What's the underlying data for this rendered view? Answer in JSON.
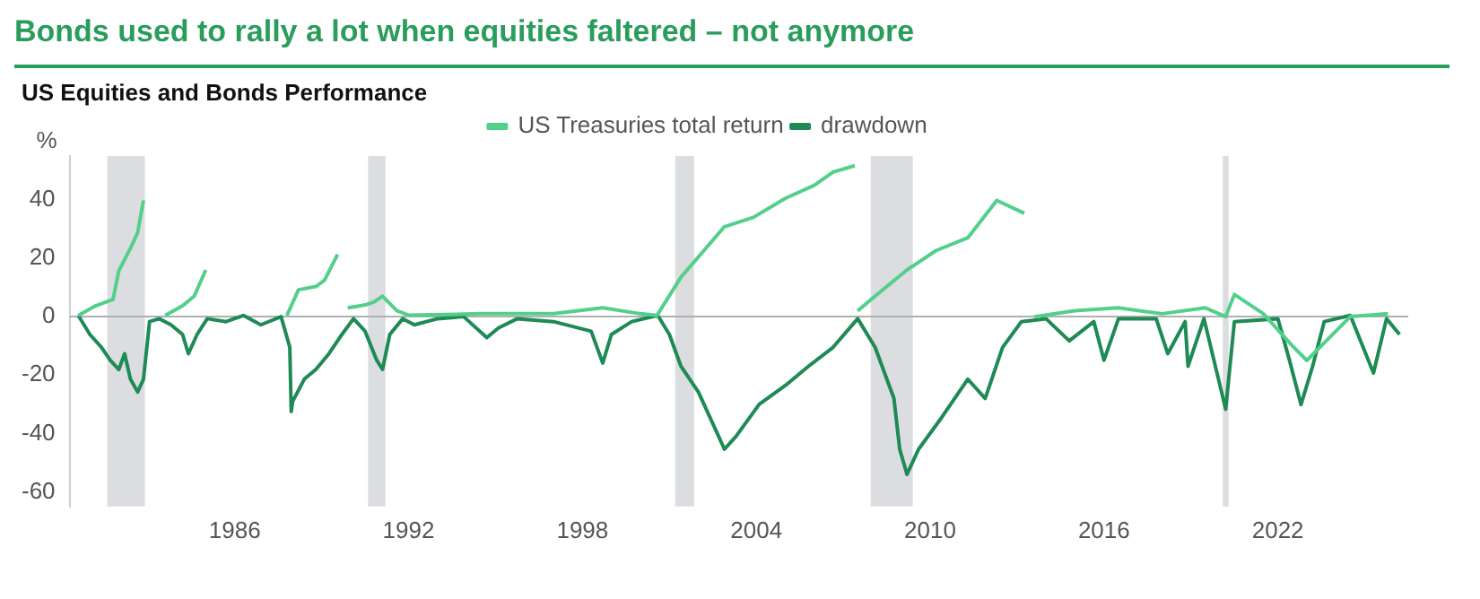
{
  "chart_data": {
    "type": "line",
    "title": "Bonds used to rally a lot when equities faltered – not anymore",
    "subtitle": "US Equities and Bonds Performance",
    "ylabel": "%",
    "xlim": [
      1980.3,
      2026.5
    ],
    "xticks": [
      1986,
      1992,
      1998,
      2004,
      2010,
      2016,
      2022
    ],
    "ylim": [
      -65,
      55
    ],
    "yticks": [
      -60,
      -40,
      -20,
      0,
      20,
      40
    ],
    "grid": false,
    "legend": "top",
    "marker": "none",
    "line_style": "solid",
    "bands": [
      {
        "axis": "x",
        "from": 1981.6,
        "to": 1982.9,
        "color": "#dcdde0"
      },
      {
        "axis": "x",
        "from": 1990.6,
        "to": 1991.2,
        "color": "#dcdde0"
      },
      {
        "axis": "x",
        "from": 2001.2,
        "to": 2001.85,
        "color": "#dcdde0"
      },
      {
        "axis": "x",
        "from": 2007.95,
        "to": 2009.4,
        "color": "#dcdde0"
      },
      {
        "axis": "x",
        "from": 2020.1,
        "to": 2020.3,
        "color": "#dcdde0"
      }
    ],
    "ref_lines": [
      {
        "axis": "y",
        "value": 0,
        "color": "#b0b0b0"
      }
    ],
    "series": [
      {
        "name": "US Treasuries total return",
        "color": "#52d08b",
        "x": [
          1980.6,
          1981.2,
          1981.8,
          1982.0,
          1982.4,
          1982.65,
          1982.85,
          1983.2,
          1983.6,
          1984.2,
          1984.6,
          1985.0,
          1985.5,
          1987.8,
          1988.2,
          1988.8,
          1989.1,
          1989.55,
          1989.7,
          1989.9,
          1990.2,
          1990.5,
          1990.8,
          1991.1,
          1991.6,
          1992.0,
          1994.5,
          1997.0,
          1998.7,
          2000.0,
          2000.57,
          2001.4,
          2002.9,
          2003.9,
          2005.0,
          2006.0,
          2006.65,
          2007.4,
          2007.45,
          2007.5,
          2008.1,
          2009.2,
          2010.2,
          2011.3,
          2012.3,
          2013.25,
          2013.4,
          2013.6,
          2015.0,
          2016.5,
          2018.0,
          2019.5,
          2020.2,
          2020.5,
          2021.5,
          2022.5,
          2023.0,
          2023.5,
          2024.5,
          2025.8
        ],
        "values": [
          0.4,
          3.7,
          5.9,
          15.7,
          23.4,
          28.8,
          39.8,
          null,
          0.4,
          3.7,
          7,
          16,
          null,
          0.4,
          9.2,
          10.3,
          12.5,
          21.3,
          null,
          3,
          3.5,
          4,
          5,
          7,
          2,
          0.5,
          1,
          1,
          3,
          1,
          0.4,
          13.5,
          30.8,
          34,
          40.5,
          45,
          49.5,
          51.7,
          null,
          2,
          7,
          16,
          22.6,
          27,
          39.8,
          35.4,
          null,
          0,
          2,
          3,
          1,
          3,
          0,
          7.6,
          1,
          -10,
          -15,
          -10,
          0,
          1
        ]
      },
      {
        "name": "drawdown",
        "color": "#1e8a55",
        "x": [
          1980.6,
          1981.0,
          1981.4,
          1981.7,
          1982.0,
          1982.2,
          1982.4,
          1982.65,
          1982.85,
          1983.06,
          1983.4,
          1983.8,
          1984.2,
          1984.4,
          1984.7,
          1985.05,
          1985.7,
          1986.3,
          1986.9,
          1987.6,
          1987.9,
          1987.95,
          1988.0,
          1988.4,
          1988.8,
          1989.25,
          1989.7,
          1990.1,
          1990.5,
          1990.9,
          1991.1,
          1991.35,
          1991.8,
          1992.2,
          1993.0,
          1993.9,
          1994.7,
          1995.1,
          1995.75,
          1997.0,
          1998.3,
          1998.7,
          1999.0,
          1999.7,
          2000.6,
          2001.0,
          2001.4,
          2002.0,
          2002.7,
          2002.9,
          2003.3,
          2004.1,
          2005.0,
          2005.8,
          2006.65,
          2007.5,
          2008.1,
          2008.75,
          2008.95,
          2009.2,
          2009.6,
          2010.4,
          2011.3,
          2011.5,
          2011.9,
          2012.5,
          2013.15,
          2014.0,
          2014.8,
          2015.65,
          2016.0,
          2016.5,
          2017.8,
          2018.2,
          2018.8,
          2018.9,
          2019.45,
          2020.2,
          2020.5,
          2022.0,
          2022.4,
          2022.8,
          2023.2,
          2023.6,
          2024.5,
          2025.3,
          2025.75,
          2026.2
        ],
        "values": [
          0.4,
          -6.1,
          -10.5,
          -14.9,
          -18.1,
          -12.7,
          -21.4,
          -25.8,
          -21.4,
          -1.7,
          -0.7,
          -2.8,
          -6.1,
          -12.7,
          -6.1,
          -0.7,
          -1.7,
          0.4,
          -2.8,
          0,
          -10.5,
          -32.5,
          -29,
          -21.4,
          -18.1,
          -12.7,
          -6.1,
          -0.7,
          -5,
          -14.9,
          -18.1,
          -6.1,
          -0.7,
          -2.8,
          -0.7,
          0,
          -7.2,
          -3.9,
          -0.7,
          -1.7,
          -5,
          -15.9,
          -6.1,
          -1.7,
          0.4,
          -6.1,
          -17,
          -25.8,
          -41,
          -45.4,
          -41,
          -30,
          -23.6,
          -17,
          -10.5,
          -0.7,
          -10.5,
          -28,
          -45.4,
          -54,
          -45.4,
          -34.5,
          -21.4,
          -23.6,
          -28,
          -10.5,
          -1.7,
          -0.7,
          -8.3,
          -1.7,
          -14.9,
          -0.7,
          -0.7,
          -12.7,
          -1.7,
          -17,
          -0.7,
          -31.7,
          -1.7,
          -0.7,
          -14.9,
          -30.1,
          -17,
          -1.7,
          0.4,
          -19.3,
          -0.7,
          -6.1
        ]
      }
    ]
  }
}
